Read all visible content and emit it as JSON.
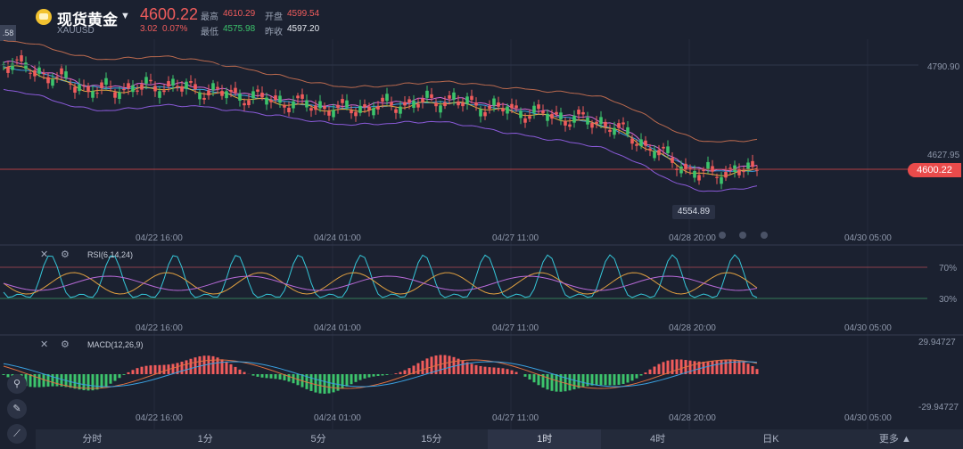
{
  "header": {
    "title": "现货黄金",
    "code": "XAUUSD",
    "price": "4600.22",
    "change": "3.02",
    "change_pct": "0.07%",
    "high_label": "最高",
    "high": "4610.29",
    "open_label": "开盘",
    "open": "4599.54",
    "low_label": "最低",
    "low": "4575.98",
    "prev_label": "昨收",
    "prev": "4597.20",
    "side_tag": ".58"
  },
  "main_chart": {
    "price_levels": [
      "4790.90",
      "4627.95"
    ],
    "current_price_tag": "4600.22",
    "low_marker": "4554.89",
    "date_labels": [
      "04/22 16:00",
      "04/24 01:00",
      "04/27 11:00",
      "04/28 20:00",
      "04/30 05:00"
    ]
  },
  "rsi_panel": {
    "label": "RSI(6,14,24)",
    "levels": [
      "70%",
      "30%"
    ]
  },
  "macd_panel": {
    "label": "MACD(12,26,9)",
    "levels": [
      "29.94727",
      "-29.94727"
    ]
  },
  "timeframes": [
    "分时",
    "1分",
    "5分",
    "15分",
    "1时",
    "4时",
    "日K",
    "更多"
  ],
  "active_timeframe": "1时",
  "colors": {
    "up": "#f05c5c",
    "down": "#3cc46c",
    "background": "#1b2130",
    "price_tag": "#e94b4b"
  }
}
